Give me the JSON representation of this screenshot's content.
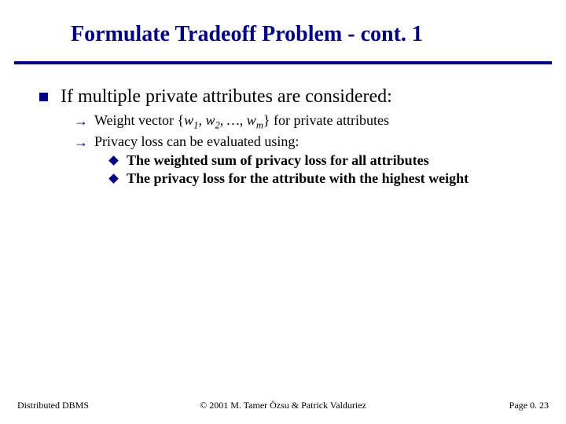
{
  "title": "Formulate Tradeoff Problem - cont. 1",
  "colors": {
    "accent": "#000080",
    "background": "#ffffff",
    "text": "#000000"
  },
  "body": {
    "l1": "If multiple private attributes are considered:",
    "l2a_pre": "Weight vector {",
    "l2a_w": "w",
    "l2a_s1": "1",
    "l2a_c1": ", ",
    "l2a_s2": "2",
    "l2a_c2": ", …, ",
    "l2a_sm": "m",
    "l2a_post": "} for private attributes",
    "l2b": "Privacy loss can be evaluated using:",
    "l3a": "The weighted sum of privacy loss for all attributes",
    "l3b": "The privacy loss for the attribute with the highest weight"
  },
  "footer": {
    "left": "Distributed DBMS",
    "center": "© 2001 M. Tamer Özsu & Patrick Valduriez",
    "right": "Page 0. 23"
  }
}
